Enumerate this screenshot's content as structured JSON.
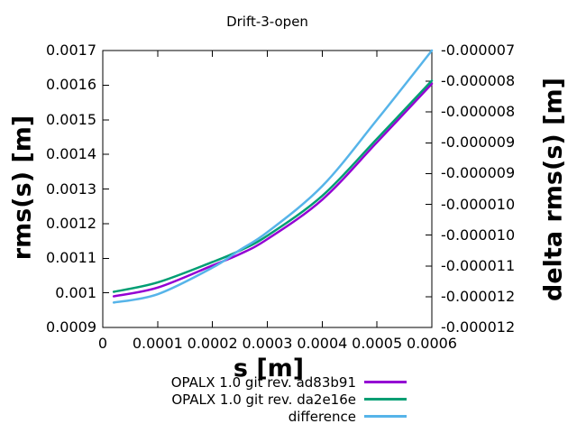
{
  "chart_data": {
    "type": "line",
    "title": "Drift-3-open",
    "xlabel": "s [m]",
    "ylabel": "rms(s) [m]",
    "y2label": "delta rms(s) [m]",
    "background": "#ffffff",
    "text_color": "#000000",
    "border_color": "#000000",
    "grid": false,
    "legend_position": "below-plot-right",
    "xlim": [
      0,
      0.0006
    ],
    "ylim": [
      0.0009,
      0.0017
    ],
    "y2lim": [
      -1.2e-05,
      -7e-06
    ],
    "x_tick_labels": [
      "0",
      "0.0001",
      "0.0002",
      "0.0003",
      "0.0004",
      "0.0005",
      "0.0006"
    ],
    "y_tick_labels": [
      "0.0017",
      "0.0016",
      "0.0015",
      "0.0014",
      "0.0013",
      "0.0012",
      "0.0011",
      "0.001",
      "0.0009"
    ],
    "y2_tick_labels": [
      "-0.000007",
      "-0.000008",
      "-0.000008",
      "-0.000009",
      "-0.000009",
      "-0.000010",
      "-0.000010",
      "-0.000011",
      "-0.000012",
      "-0.000012"
    ],
    "x": [
      2e-05,
      0.0001,
      0.0002,
      0.00025,
      0.0003,
      0.0004,
      0.0005,
      0.0006
    ],
    "series": [
      {
        "name": "OPALX 1.0 git rev. ad83b91",
        "color": "#9400d3",
        "axis": "y1",
        "values": [
          0.00099,
          0.001015,
          0.001079,
          0.001112,
          0.001155,
          0.001269,
          0.001435,
          0.001604
        ]
      },
      {
        "name": "OPALX 1.0 git rev. da2e16e",
        "color": "#009e73",
        "axis": "y1",
        "values": [
          0.001003,
          0.00103,
          0.001089,
          0.001122,
          0.001165,
          0.00128,
          0.001445,
          0.001613
        ]
      },
      {
        "name": "difference",
        "color": "#56b4e9",
        "axis": "y2",
        "values": [
          -1.155e-05,
          -1.14e-05,
          -1.092e-05,
          -1.06e-05,
          -1.028e-05,
          -9.45e-06,
          -8.25e-06,
          -7e-06
        ]
      }
    ]
  }
}
